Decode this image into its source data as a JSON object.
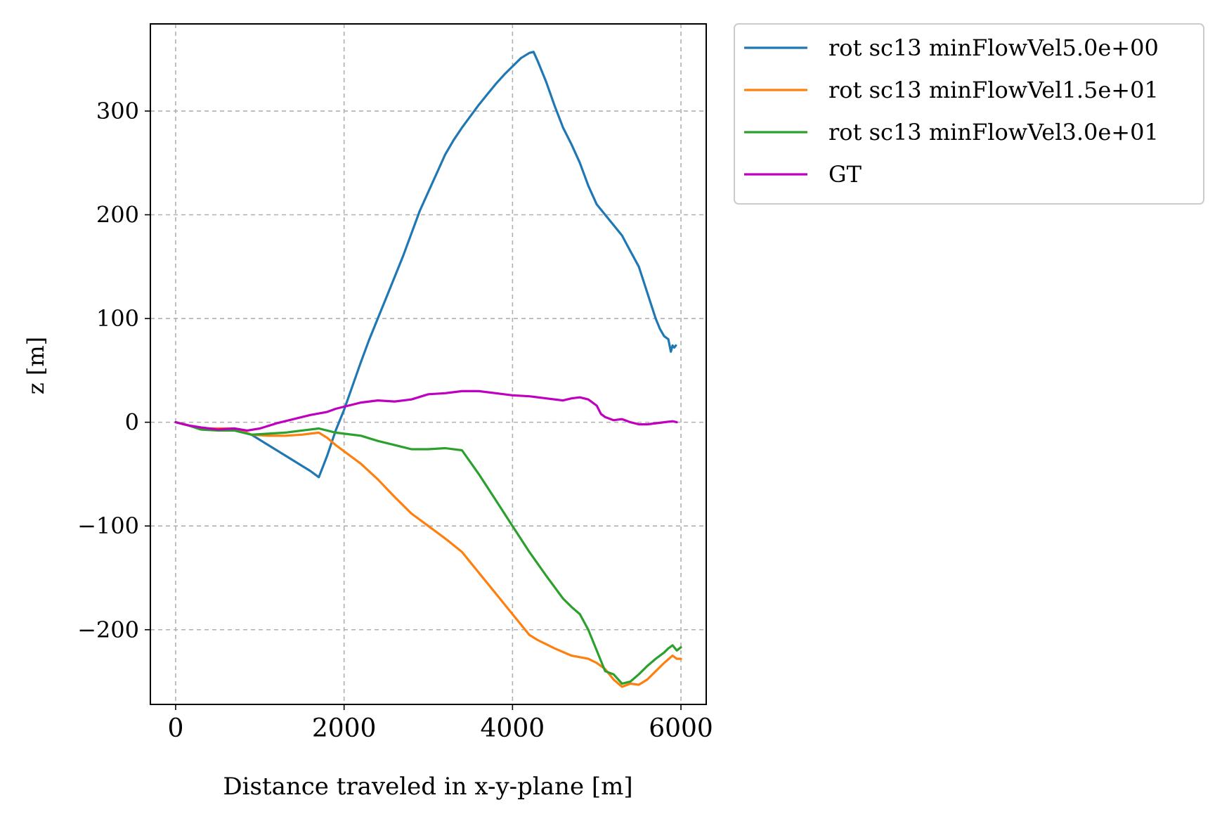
{
  "chart_data": {
    "type": "line",
    "title": "",
    "xlabel": "Distance traveled in x-y-plane [m]",
    "ylabel": "z [m]",
    "xlim": [
      -300,
      6300
    ],
    "ylim": [
      -272,
      384
    ],
    "xticks": [
      0,
      2000,
      4000,
      6000
    ],
    "xtick_labels": [
      "0",
      "2000",
      "4000",
      "6000"
    ],
    "yticks": [
      -200,
      -100,
      0,
      100,
      200,
      300
    ],
    "ytick_labels": [
      "−200",
      "−100",
      "0",
      "100",
      "200",
      "300"
    ],
    "grid": true,
    "legend_position": "outside-upper-right",
    "series": [
      {
        "name": "rot sc13 minFlowVel5.0e+00",
        "color": "#1f77b4",
        "x": [
          0,
          150,
          300,
          500,
          700,
          900,
          1100,
          1300,
          1500,
          1600,
          1700,
          1800,
          1900,
          2000,
          2100,
          2200,
          2300,
          2400,
          2500,
          2600,
          2700,
          2800,
          2900,
          3000,
          3100,
          3200,
          3300,
          3400,
          3500,
          3600,
          3700,
          3800,
          3900,
          4000,
          4100,
          4200,
          4250,
          4300,
          4400,
          4500,
          4600,
          4700,
          4800,
          4900,
          5000,
          5100,
          5200,
          5300,
          5400,
          5500,
          5600,
          5700,
          5750,
          5800,
          5850,
          5880,
          5900,
          5920,
          5940
        ],
        "y": [
          0,
          -3,
          -6,
          -6,
          -6,
          -12,
          -22,
          -32,
          -42,
          -47,
          -53,
          -32,
          -8,
          12,
          35,
          58,
          80,
          100,
          120,
          140,
          160,
          182,
          204,
          222,
          240,
          258,
          272,
          284,
          295,
          306,
          316,
          326,
          335,
          343,
          351,
          356,
          357,
          348,
          328,
          305,
          284,
          268,
          250,
          228,
          210,
          200,
          190,
          180,
          165,
          150,
          125,
          100,
          90,
          83,
          80,
          68,
          74,
          72,
          74
        ]
      },
      {
        "name": "rot sc13 minFlowVel1.5e+01",
        "color": "#ff7f0e",
        "x": [
          0,
          150,
          300,
          500,
          700,
          900,
          1100,
          1300,
          1500,
          1700,
          1800,
          1900,
          2000,
          2200,
          2400,
          2600,
          2800,
          3000,
          3200,
          3400,
          3600,
          3800,
          4000,
          4200,
          4300,
          4500,
          4700,
          4900,
          5000,
          5100,
          5200,
          5300,
          5400,
          5500,
          5600,
          5700,
          5800,
          5900,
          5950,
          6000
        ],
        "y": [
          0,
          -3,
          -6,
          -6,
          -6,
          -12,
          -13,
          -13,
          -12,
          -10,
          -15,
          -22,
          -28,
          -40,
          -55,
          -72,
          -88,
          -100,
          -112,
          -125,
          -145,
          -165,
          -185,
          -205,
          -210,
          -218,
          -225,
          -228,
          -232,
          -238,
          -248,
          -255,
          -252,
          -253,
          -248,
          -240,
          -232,
          -225,
          -228,
          -228
        ]
      },
      {
        "name": "rot sc13 minFlowVel3.0e+01",
        "color": "#2ca02c",
        "x": [
          0,
          150,
          300,
          500,
          700,
          900,
          1100,
          1300,
          1500,
          1700,
          1800,
          1900,
          2000,
          2200,
          2400,
          2600,
          2800,
          3000,
          3200,
          3400,
          3600,
          3800,
          4000,
          4200,
          4400,
          4600,
          4700,
          4800,
          4900,
          5000,
          5100,
          5200,
          5300,
          5400,
          5500,
          5600,
          5700,
          5800,
          5850,
          5900,
          5950,
          6000
        ],
        "y": [
          0,
          -3,
          -7,
          -8,
          -8,
          -12,
          -11,
          -10,
          -8,
          -6,
          -8,
          -10,
          -11,
          -13,
          -18,
          -22,
          -26,
          -26,
          -25,
          -27,
          -50,
          -75,
          -100,
          -125,
          -148,
          -170,
          -178,
          -185,
          -200,
          -220,
          -240,
          -243,
          -252,
          -250,
          -243,
          -235,
          -228,
          -222,
          -218,
          -215,
          -220,
          -217
        ]
      },
      {
        "name": "GT",
        "color": "#bf00bf",
        "x": [
          0,
          150,
          300,
          500,
          700,
          850,
          1000,
          1200,
          1400,
          1600,
          1800,
          1900,
          2000,
          2200,
          2400,
          2600,
          2800,
          3000,
          3200,
          3400,
          3600,
          3800,
          4000,
          4200,
          4400,
          4600,
          4700,
          4800,
          4900,
          5000,
          5050,
          5100,
          5200,
          5300,
          5400,
          5500,
          5600,
          5700,
          5800,
          5900,
          5950
        ],
        "y": [
          0,
          -3,
          -5,
          -7,
          -6,
          -8,
          -6,
          -1,
          3,
          7,
          10,
          13,
          15,
          19,
          21,
          20,
          22,
          27,
          28,
          30,
          30,
          28,
          26,
          25,
          23,
          21,
          23,
          24,
          22,
          16,
          8,
          5,
          2,
          3,
          0,
          -2,
          -2,
          -1,
          0,
          1,
          0
        ]
      }
    ]
  }
}
